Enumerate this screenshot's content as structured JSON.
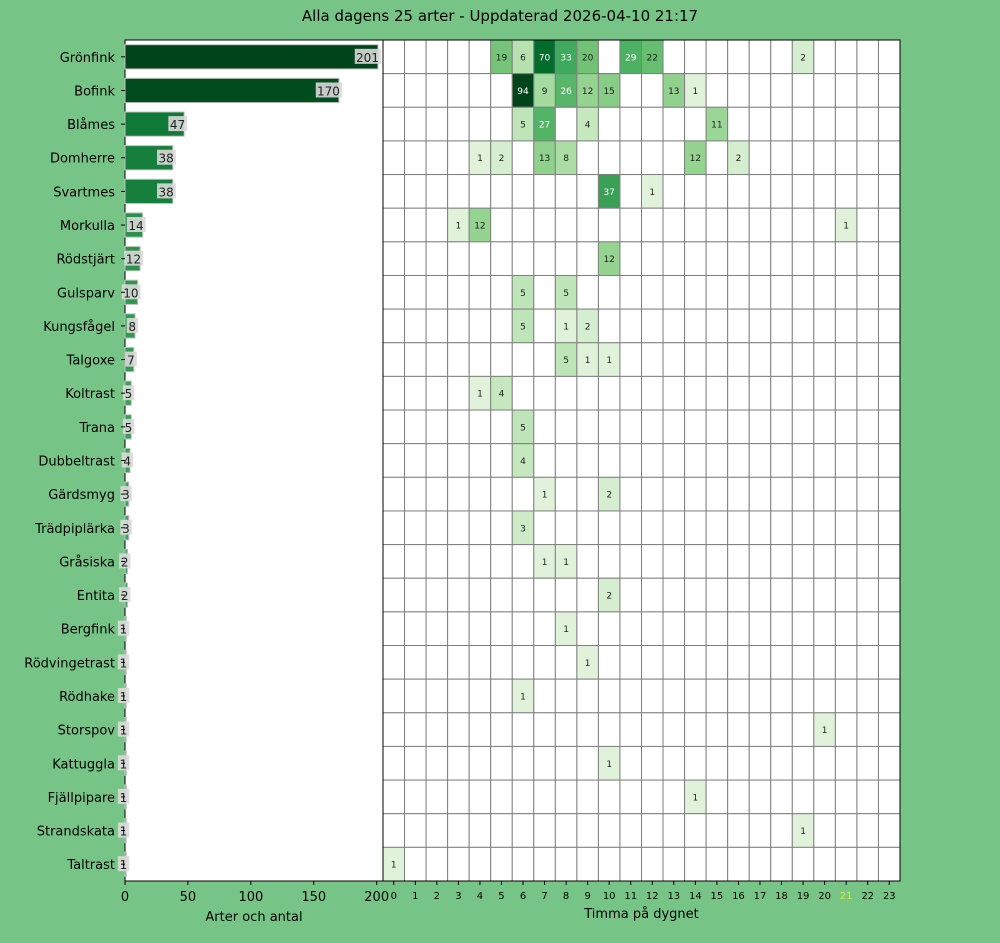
{
  "chart_data": [
    {
      "type": "bar",
      "orientation": "horizontal",
      "title": "Alla dagens 25 arter - Uppdaterad 2026-04-10 21:17",
      "xlabel": "Arter och antal",
      "xlim": [
        0,
        205
      ],
      "xticks": [
        0,
        50,
        100,
        150,
        200
      ],
      "grid": false,
      "categories": [
        "Grönfink",
        "Bofink",
        "Blåmes",
        "Domherre",
        "Svartmes",
        "Morkulla",
        "Rödstjärt",
        "Gulsparv",
        "Kungsfågel",
        "Talgoxe",
        "Koltrast",
        "Trana",
        "Dubbeltrast",
        "Gärdsmyg",
        "Trädpiplärka",
        "Gråsiska",
        "Entita",
        "Bergfink",
        "Rödvingetrast",
        "Rödhake",
        "Storspov",
        "Kattuggla",
        "Fjällpipare",
        "Strandskata",
        "Taltrast"
      ],
      "values": [
        201,
        170,
        47,
        38,
        38,
        14,
        12,
        10,
        8,
        7,
        5,
        5,
        4,
        3,
        3,
        2,
        2,
        1,
        1,
        1,
        1,
        1,
        1,
        1,
        1
      ]
    },
    {
      "type": "heatmap",
      "xlabel": "Timma på dygnet",
      "hours": [
        "0",
        "1",
        "2",
        "3",
        "4",
        "5",
        "6",
        "7",
        "8",
        "9",
        "10",
        "11",
        "12",
        "13",
        "14",
        "15",
        "16",
        "17",
        "18",
        "19",
        "20",
        "21",
        "22",
        "23"
      ],
      "highlight_hour": "21",
      "highlight_color": "#ccee33",
      "color_scale": "Greens",
      "grid": true,
      "rows": [
        {
          "species": "Grönfink",
          "counts": {
            "5": 19,
            "6": 6,
            "7": 70,
            "8": 33,
            "9": 20,
            "11": 29,
            "12": 22,
            "19": 2
          }
        },
        {
          "species": "Bofink",
          "counts": {
            "6": 94,
            "7": 9,
            "8": 26,
            "9": 12,
            "10": 15,
            "13": 13,
            "14": 1
          }
        },
        {
          "species": "Blåmes",
          "counts": {
            "6": 5,
            "7": 27,
            "9": 4,
            "15": 11
          }
        },
        {
          "species": "Domherre",
          "counts": {
            "4": 1,
            "5": 2,
            "7": 13,
            "8": 8,
            "14": 12,
            "16": 2
          }
        },
        {
          "species": "Svartmes",
          "counts": {
            "10": 37,
            "12": 1
          }
        },
        {
          "species": "Morkulla",
          "counts": {
            "3": 1,
            "4": 12,
            "21": 1
          }
        },
        {
          "species": "Rödstjärt",
          "counts": {
            "10": 12
          }
        },
        {
          "species": "Gulsparv",
          "counts": {
            "6": 5,
            "8": 5
          }
        },
        {
          "species": "Kungsfågel",
          "counts": {
            "6": 5,
            "8": 1,
            "9": 2
          }
        },
        {
          "species": "Talgoxe",
          "counts": {
            "8": 5,
            "9": 1,
            "10": 1
          }
        },
        {
          "species": "Koltrast",
          "counts": {
            "4": 1,
            "5": 4
          }
        },
        {
          "species": "Trana",
          "counts": {
            "6": 5
          }
        },
        {
          "species": "Dubbeltrast",
          "counts": {
            "6": 4
          }
        },
        {
          "species": "Gärdsmyg",
          "counts": {
            "7": 1,
            "10": 2
          }
        },
        {
          "species": "Trädpiplärka",
          "counts": {
            "6": 3
          }
        },
        {
          "species": "Gråsiska",
          "counts": {
            "7": 1,
            "8": 1
          }
        },
        {
          "species": "Entita",
          "counts": {
            "10": 2
          }
        },
        {
          "species": "Bergfink",
          "counts": {
            "8": 1
          }
        },
        {
          "species": "Rödvingetrast",
          "counts": {
            "9": 1
          }
        },
        {
          "species": "Rödhake",
          "counts": {
            "6": 1
          }
        },
        {
          "species": "Storspov",
          "counts": {
            "20": 1
          }
        },
        {
          "species": "Kattuggla",
          "counts": {
            "10": 1
          }
        },
        {
          "species": "Fjällpipare",
          "counts": {
            "14": 1
          }
        },
        {
          "species": "Strandskata",
          "counts": {
            "19": 1
          }
        },
        {
          "species": "Taltrast",
          "counts": {
            "0": 1
          }
        }
      ]
    }
  ],
  "colors": {
    "background": "#77c586",
    "panel": "#ffffff",
    "grid_line": "#808080",
    "label_box": "#d9d9d9"
  }
}
